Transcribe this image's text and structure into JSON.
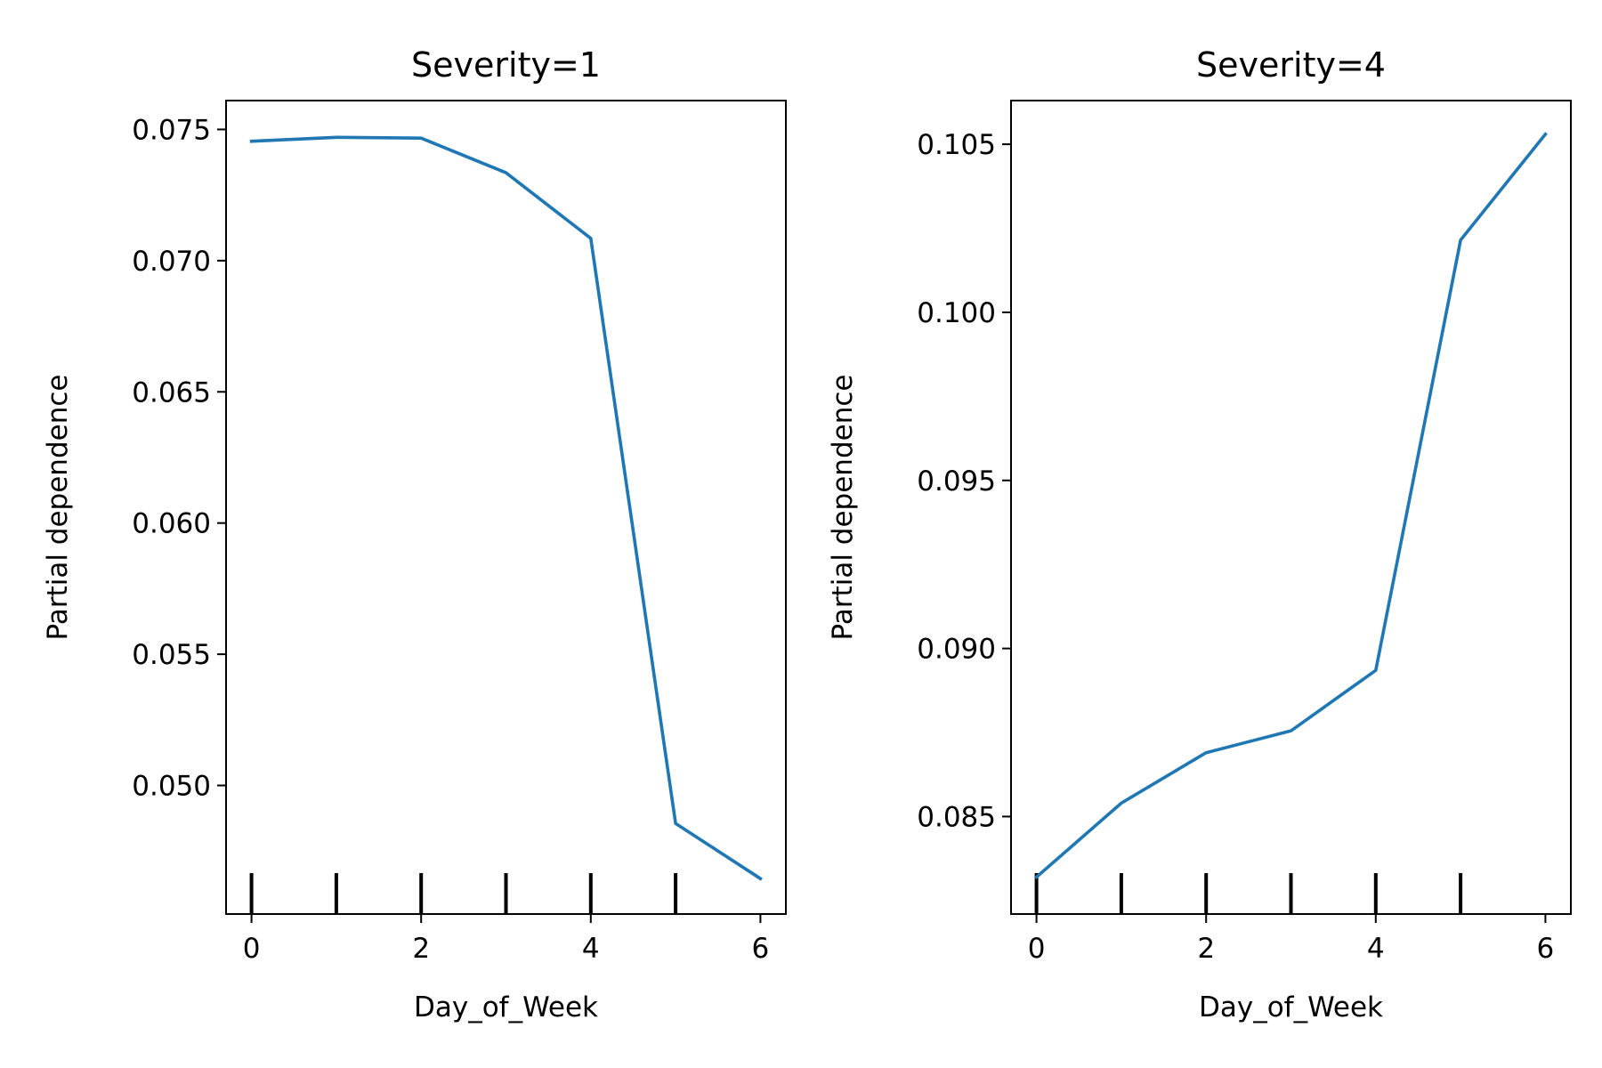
{
  "chart_data": [
    {
      "type": "line",
      "title": "Severity=1",
      "xlabel": "Day_of_Week",
      "ylabel": "Partial dependence",
      "x": [
        0,
        1,
        2,
        3,
        4,
        5,
        6
      ],
      "series": [
        {
          "values": [
            0.07455,
            0.0747,
            0.07467,
            0.07335,
            0.07085,
            0.04855,
            0.04645
          ]
        }
      ],
      "xlim": [
        -0.3,
        6.3
      ],
      "ylim": [
        0.0451,
        0.0761
      ],
      "xticks": [
        0,
        2,
        4,
        6
      ],
      "xtick_labels": [
        "0",
        "2",
        "4",
        "6"
      ],
      "yticks": [
        0.05,
        0.055,
        0.06,
        0.065,
        0.07,
        0.075
      ],
      "ytick_labels": [
        "0.050",
        "0.055",
        "0.060",
        "0.065",
        "0.070",
        "0.075"
      ],
      "rug_x": [
        0,
        1,
        2,
        3,
        4,
        5
      ],
      "grid": false
    },
    {
      "type": "line",
      "title": "Severity=4",
      "xlabel": "Day_of_Week",
      "ylabel": "Partial dependence",
      "x": [
        0,
        1,
        2,
        3,
        4,
        5,
        6
      ],
      "series": [
        {
          "values": [
            0.0832,
            0.0854,
            0.0869,
            0.08755,
            0.08935,
            0.10215,
            0.1053
          ]
        }
      ],
      "xlim": [
        -0.3,
        6.3
      ],
      "ylim": [
        0.0821,
        0.1063
      ],
      "xticks": [
        0,
        2,
        4,
        6
      ],
      "xtick_labels": [
        "0",
        "2",
        "4",
        "6"
      ],
      "yticks": [
        0.085,
        0.09,
        0.095,
        0.1,
        0.105
      ],
      "ytick_labels": [
        "0.085",
        "0.090",
        "0.095",
        "0.100",
        "0.105"
      ],
      "rug_x": [
        0,
        1,
        2,
        3,
        4,
        5
      ],
      "grid": false
    }
  ],
  "colors": {
    "series": "#1f77b4",
    "axes": "#000000",
    "background": "#ffffff"
  }
}
